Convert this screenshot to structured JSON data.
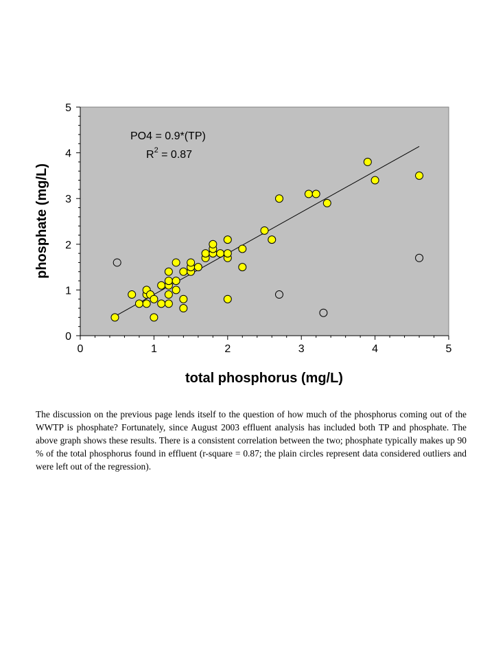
{
  "chart_data": {
    "type": "scatter",
    "xlabel": "total phosphorus (mg/L)",
    "ylabel": "phosphate (mg/L)",
    "xlim": [
      0,
      5
    ],
    "ylim": [
      0,
      5
    ],
    "xticks": [
      "0",
      "1",
      "2",
      "3",
      "4",
      "5"
    ],
    "yticks": [
      "0",
      "1",
      "2",
      "3",
      "4",
      "5"
    ],
    "grid": false,
    "plot_background": "#c0c0c0",
    "annotation": {
      "equation": "PO4 = 0.9*(TP)",
      "r2_prefix": "R",
      "r2_sup": "2",
      "r2_value": " = 0.87"
    },
    "trendline": {
      "slope": 0.9,
      "intercept": 0,
      "x_start": 0.47,
      "x_end": 4.6
    },
    "series": [
      {
        "marker_color": "#ffff00",
        "points": [
          [
            0.47,
            0.4
          ],
          [
            0.7,
            0.9
          ],
          [
            0.8,
            0.7
          ],
          [
            0.9,
            0.7
          ],
          [
            0.9,
            0.9
          ],
          [
            0.9,
            1.0
          ],
          [
            0.95,
            0.9
          ],
          [
            1.0,
            0.8
          ],
          [
            1.0,
            0.4
          ],
          [
            1.1,
            1.1
          ],
          [
            1.1,
            0.7
          ],
          [
            1.2,
            0.7
          ],
          [
            1.2,
            0.9
          ],
          [
            1.2,
            1.1
          ],
          [
            1.2,
            1.2
          ],
          [
            1.2,
            1.4
          ],
          [
            1.3,
            1.0
          ],
          [
            1.3,
            1.2
          ],
          [
            1.3,
            1.6
          ],
          [
            1.4,
            1.4
          ],
          [
            1.4,
            0.8
          ],
          [
            1.4,
            0.6
          ],
          [
            1.5,
            1.4
          ],
          [
            1.5,
            1.5
          ],
          [
            1.5,
            1.6
          ],
          [
            1.6,
            1.5
          ],
          [
            1.7,
            1.7
          ],
          [
            1.7,
            1.8
          ],
          [
            1.8,
            1.8
          ],
          [
            1.8,
            1.9
          ],
          [
            1.8,
            2.0
          ],
          [
            1.9,
            1.8
          ],
          [
            2.0,
            1.7
          ],
          [
            2.0,
            1.8
          ],
          [
            2.0,
            2.1
          ],
          [
            2.0,
            0.8
          ],
          [
            2.2,
            1.5
          ],
          [
            2.2,
            1.9
          ],
          [
            2.5,
            2.3
          ],
          [
            2.6,
            2.1
          ],
          [
            2.7,
            3.0
          ],
          [
            3.1,
            3.1
          ],
          [
            3.2,
            3.1
          ],
          [
            3.35,
            2.9
          ],
          [
            3.9,
            3.8
          ],
          [
            4.0,
            3.4
          ],
          [
            4.6,
            3.5
          ]
        ]
      },
      {
        "marker_color": "#c0c0c0",
        "points": [
          [
            0.5,
            1.6
          ],
          [
            2.7,
            0.9
          ],
          [
            3.3,
            0.5
          ],
          [
            4.6,
            1.7
          ]
        ]
      }
    ]
  },
  "caption": "The discussion on the previous page lends itself to the question of how much of the phosphorus coming out of the WWTP is phosphate?  Fortunately, since August 2003 effluent analysis has included both TP and phosphate.  The above graph shows these results.  There is a consistent correlation between the two; phosphate typically makes up 90 % of the total phosphorus found in effluent (r-square = 0.87; the plain circles represent data considered outliers and were left out of the regression)."
}
